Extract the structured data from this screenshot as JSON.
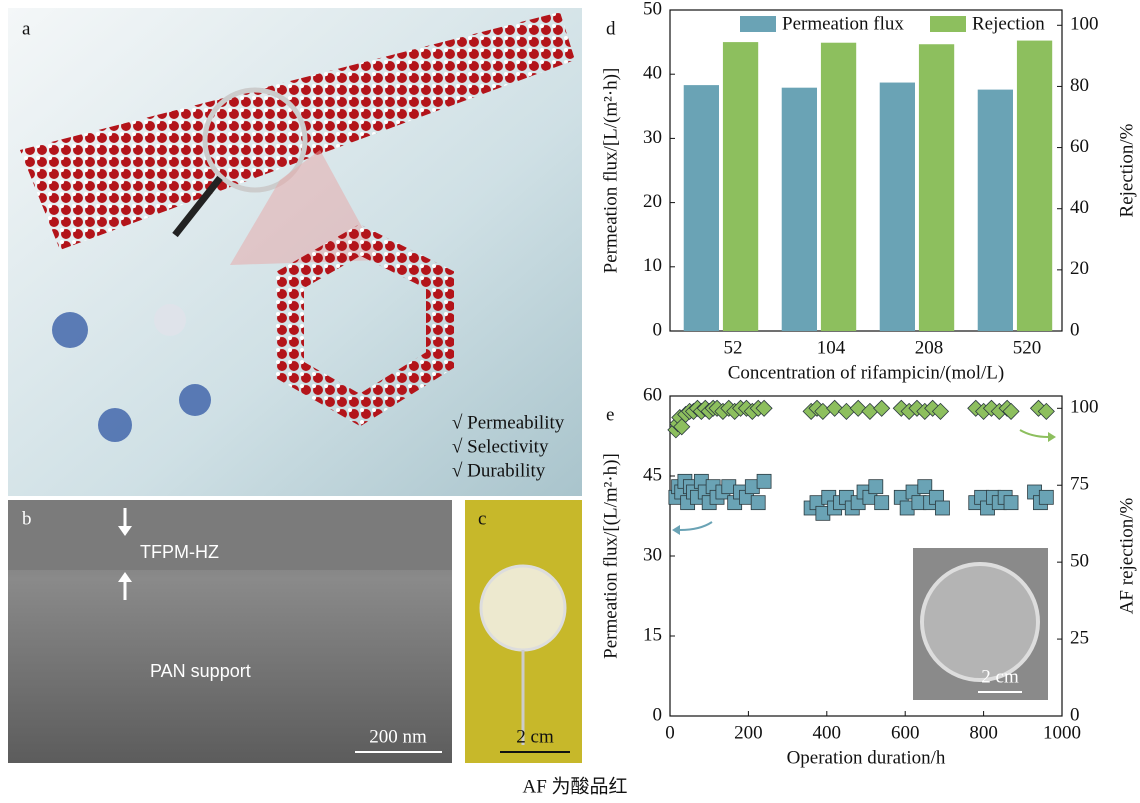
{
  "panels": {
    "a": {
      "label": "a",
      "notes": [
        "√ Permeability",
        "√ Selectivity",
        "√ Durability"
      ]
    },
    "b": {
      "label": "b",
      "layer": "TFPM-HZ",
      "support": "PAN support",
      "scale": "200 nm"
    },
    "c": {
      "label": "c",
      "scale": "2 cm"
    }
  },
  "caption": "AF 为酸品红",
  "chart_data": [
    {
      "type": "bar",
      "label": "d",
      "x_label": "Concentration of rifampicin/(mol/L)",
      "y_label": "Permeation flux/[L/(m²·h)]",
      "y2_label": "Rejection/%",
      "categories": [
        "52",
        "104",
        "208",
        "520"
      ],
      "series": [
        {
          "name": "Permeation flux",
          "color": "#6aa3b5",
          "values": [
            38.3,
            37.9,
            38.7,
            37.6
          ]
        },
        {
          "name": "Rejection",
          "color": "#8dbf5e",
          "axis": "y2",
          "values": [
            94.5,
            94.3,
            93.8,
            95.0
          ]
        }
      ],
      "ylim": [
        0,
        50
      ],
      "yticks": [
        0,
        10,
        20,
        30,
        40,
        50
      ],
      "y2lim": [
        0,
        105
      ],
      "y2ticks": [
        0,
        20,
        40,
        60,
        80,
        100
      ],
      "legend": "top"
    },
    {
      "type": "scatter",
      "label": "e",
      "x_label": "Operation duration/h",
      "y_label": "Permeation flux/[(L/m²·h)]",
      "y2_label": "AF rejection/%",
      "inset_label": "2 cm",
      "series": [
        {
          "color": "#6aa3b5",
          "marker": "square",
          "x": [
            15,
            22,
            30,
            38,
            45,
            52,
            60,
            70,
            80,
            90,
            100,
            110,
            120,
            135,
            150,
            165,
            180,
            195,
            210,
            225,
            240,
            360,
            375,
            390,
            405,
            420,
            435,
            450,
            465,
            480,
            495,
            510,
            525,
            540,
            590,
            605,
            620,
            635,
            650,
            665,
            680,
            695,
            780,
            795,
            810,
            825,
            840,
            855,
            870,
            930,
            945,
            960
          ],
          "values": [
            41,
            43,
            42,
            44,
            40,
            43,
            42,
            41,
            44,
            42,
            40,
            43,
            41,
            42,
            43,
            40,
            42,
            41,
            43,
            40,
            44,
            39,
            40,
            38,
            41,
            39,
            40,
            41,
            39,
            40,
            42,
            41,
            43,
            40,
            41,
            39,
            42,
            40,
            43,
            40,
            41,
            39,
            40,
            41,
            39,
            41,
            40,
            41,
            40,
            42,
            40,
            41
          ]
        },
        {
          "color": "#8dbf5e",
          "marker": "diamond",
          "axis": "y2",
          "x": [
            15,
            20,
            25,
            30,
            40,
            50,
            60,
            70,
            80,
            90,
            100,
            110,
            120,
            135,
            150,
            165,
            180,
            195,
            210,
            225,
            240,
            360,
            375,
            390,
            420,
            450,
            480,
            510,
            540,
            590,
            610,
            630,
            650,
            670,
            690,
            780,
            800,
            820,
            840,
            860,
            870,
            940,
            960
          ],
          "values": [
            93,
            95,
            97,
            94,
            98,
            99,
            99,
            100,
            99,
            100,
            99,
            100,
            100,
            99,
            100,
            99,
            100,
            100,
            99,
            100,
            100,
            99,
            100,
            99,
            100,
            99,
            100,
            99,
            100,
            100,
            99,
            100,
            99,
            100,
            99,
            100,
            99,
            100,
            99,
            100,
            99,
            100,
            99
          ]
        }
      ],
      "xlim": [
        0,
        1000
      ],
      "xticks": [
        0,
        200,
        400,
        600,
        800,
        1000
      ],
      "ylim": [
        0,
        60
      ],
      "yticks": [
        0,
        15,
        30,
        45,
        60
      ],
      "y2lim": [
        0,
        104
      ],
      "y2ticks": [
        0,
        25,
        50,
        75,
        100
      ]
    }
  ]
}
